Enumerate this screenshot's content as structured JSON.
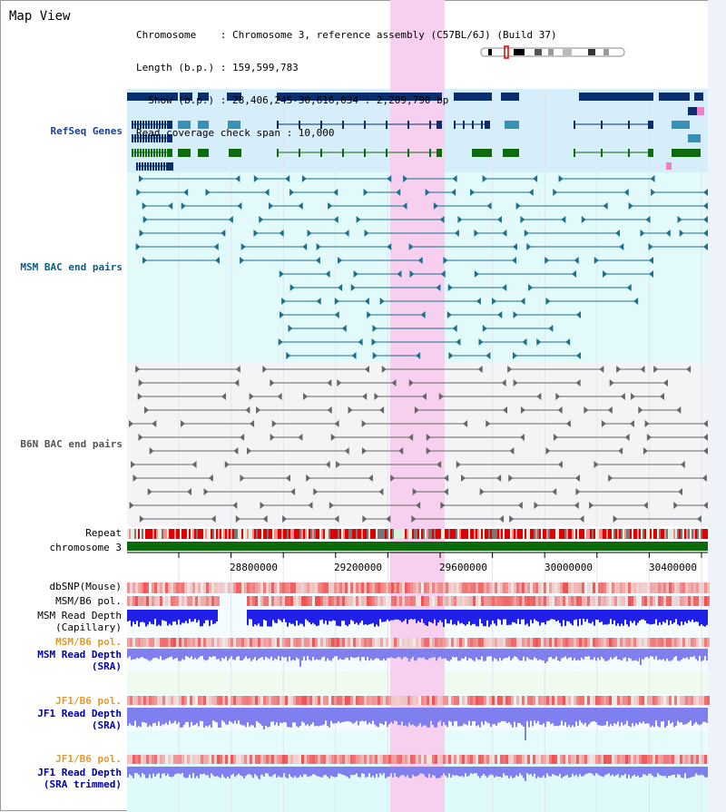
{
  "header": {
    "title": "Map View",
    "info_lines": [
      "Chromosome    : Chromosome 3, reference assembly (C57BL/6J) (Build 37)",
      "Length (b.p.) : 159,599,783",
      "  Show (b.p.) : 28,406,245-30,616,034 : 2,209,790 bp",
      "Read coverage check span : 10,000"
    ]
  },
  "tracks": {
    "refseq": "RefSeq Genes",
    "msm_bac": "MSM BAC end pairs",
    "b6n_bac": "B6N BAC end pairs",
    "repeat": "Repeat",
    "chromosome": "chromosome 3",
    "dbsnp": "dbSNP(Mouse)",
    "msm_b6_pol_1": "MSM/B6 pol.",
    "msm_read_depth_cap_1": "MSM Read Depth",
    "msm_read_depth_cap_2": "(Capillary)",
    "msm_b6_pol_2": "MSM/B6 pol.",
    "msm_read_depth_sra_1": "MSM Read Depth",
    "msm_read_depth_sra_2": "(SRA)",
    "jf1_b6_pol_1": "JF1/B6 pol.",
    "jf1_read_depth_sra_1": "JF1 Read Depth",
    "jf1_read_depth_sra_2": "(SRA)",
    "jf1_b6_pol_2": "JF1/B6 pol.",
    "jf1_read_depth_trim_1": "JF1 Read Depth",
    "jf1_read_depth_trim_2": "(SRA trimmed)"
  },
  "axis": {
    "ticks": [
      "28800000",
      "29200000",
      "29600000",
      "30000000",
      "30400000"
    ]
  },
  "colors": {
    "highlight": "#f6d0ee",
    "refseq_bg": "#d6eefa",
    "msm_bg": "#e3fafa",
    "b6n_bg": "#f4f4f7",
    "gene_navy": "#0b2f6e",
    "gene_teal": "#3a8fb5",
    "gene_green": "#106b10",
    "msm_line": "#1b6f8f",
    "b6n_line": "#666666",
    "chrom_green": "#0b6b0b",
    "depth_blue": "#2020e8",
    "depth_light": "#7f7ff0",
    "snp_red": "#f03030"
  }
}
